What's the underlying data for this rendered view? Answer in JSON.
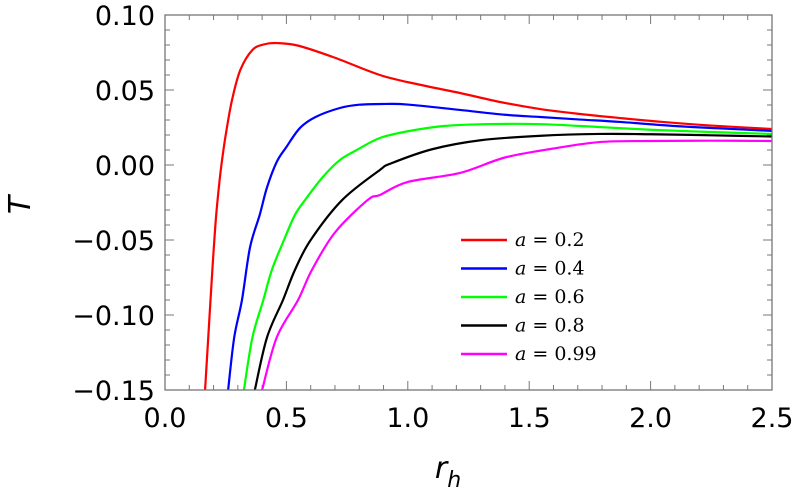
{
  "chart_data": {
    "type": "line",
    "title": "",
    "xlabel": "r_h",
    "ylabel": "T",
    "xlim": [
      0.0,
      2.5
    ],
    "ylim": [
      -0.15,
      0.1
    ],
    "grid": false,
    "legend_position": "inside-lower-right",
    "x_ticks": [
      "0.0",
      "0.5",
      "1.0",
      "1.5",
      "2.0",
      "2.5"
    ],
    "y_ticks": [
      "0.10",
      "0.05",
      "0.00",
      "−0.05",
      "−0.10",
      "−0.15"
    ],
    "x_tick_values": [
      0.0,
      0.5,
      1.0,
      1.5,
      2.0,
      2.5
    ],
    "y_tick_values": [
      0.1,
      0.05,
      0.0,
      -0.05,
      -0.1,
      -0.15
    ],
    "series": [
      {
        "name": "a = 0.2",
        "param": "a",
        "value": "0.2",
        "color": "#ff0000",
        "points": [
          [
            0.165,
            -0.15
          ],
          [
            0.18,
            -0.11
          ],
          [
            0.195,
            -0.07
          ],
          [
            0.21,
            -0.035
          ],
          [
            0.225,
            -0.01
          ],
          [
            0.235,
            0.0033
          ],
          [
            0.25,
            0.02
          ],
          [
            0.276,
            0.0433
          ],
          [
            0.31,
            0.0633
          ],
          [
            0.36,
            0.0767
          ],
          [
            0.41,
            0.0805
          ],
          [
            0.46,
            0.0813
          ],
          [
            0.55,
            0.0795
          ],
          [
            0.7,
            0.0715
          ],
          [
            0.885,
            0.06
          ],
          [
            1.05,
            0.0535
          ],
          [
            1.215,
            0.048
          ],
          [
            1.38,
            0.042
          ],
          [
            1.545,
            0.0373
          ],
          [
            1.71,
            0.034
          ],
          [
            1.875,
            0.0313
          ],
          [
            2.05,
            0.0287
          ],
          [
            2.25,
            0.0263
          ],
          [
            2.5,
            0.024
          ]
        ]
      },
      {
        "name": "a = 0.4",
        "param": "a",
        "value": "0.4",
        "color": "#0000ff",
        "points": [
          [
            0.26,
            -0.15
          ],
          [
            0.285,
            -0.115
          ],
          [
            0.317,
            -0.09
          ],
          [
            0.35,
            -0.055
          ],
          [
            0.39,
            -0.0333
          ],
          [
            0.42,
            -0.015
          ],
          [
            0.46,
            0.002
          ],
          [
            0.5,
            0.012
          ],
          [
            0.556,
            0.0247
          ],
          [
            0.62,
            0.032
          ],
          [
            0.72,
            0.038
          ],
          [
            0.8,
            0.0402
          ],
          [
            0.91,
            0.0407
          ],
          [
            1.0,
            0.0403
          ],
          [
            1.215,
            0.0367
          ],
          [
            1.4,
            0.0335
          ],
          [
            1.545,
            0.032
          ],
          [
            1.71,
            0.0303
          ],
          [
            1.875,
            0.0287
          ],
          [
            2.1,
            0.026
          ],
          [
            2.3,
            0.0243
          ],
          [
            2.5,
            0.0227
          ]
        ]
      },
      {
        "name": "a = 0.6",
        "param": "a",
        "value": "0.6",
        "color": "#00ff00",
        "points": [
          [
            0.325,
            -0.15
          ],
          [
            0.36,
            -0.115
          ],
          [
            0.405,
            -0.09
          ],
          [
            0.44,
            -0.07
          ],
          [
            0.49,
            -0.05
          ],
          [
            0.535,
            -0.0333
          ],
          [
            0.577,
            -0.0233
          ],
          [
            0.65,
            -0.008
          ],
          [
            0.72,
            0.0033
          ],
          [
            0.79,
            0.01
          ],
          [
            0.885,
            0.018
          ],
          [
            1.0,
            0.0225
          ],
          [
            1.15,
            0.026
          ],
          [
            1.34,
            0.0273
          ],
          [
            1.55,
            0.0272
          ],
          [
            1.79,
            0.0253
          ],
          [
            2.0,
            0.0235
          ],
          [
            2.25,
            0.022
          ],
          [
            2.5,
            0.0207
          ]
        ]
      },
      {
        "name": "a = 0.8",
        "param": "a",
        "value": "0.8",
        "color": "#000000",
        "points": [
          [
            0.37,
            -0.15
          ],
          [
            0.42,
            -0.115
          ],
          [
            0.486,
            -0.09
          ],
          [
            0.535,
            -0.07
          ],
          [
            0.6,
            -0.05
          ],
          [
            0.73,
            -0.0233
          ],
          [
            0.885,
            -0.0033
          ],
          [
            0.93,
            0.001
          ],
          [
            1.1,
            0.0105
          ],
          [
            1.3,
            0.0165
          ],
          [
            1.55,
            0.0195
          ],
          [
            1.79,
            0.0207
          ],
          [
            2.0,
            0.0205
          ],
          [
            2.25,
            0.0198
          ],
          [
            2.5,
            0.019
          ]
        ]
      },
      {
        "name": "a = 0.99",
        "param": "a",
        "value": "0.99",
        "color": "#ff00ff",
        "points": [
          [
            0.4,
            -0.15
          ],
          [
            0.46,
            -0.115
          ],
          [
            0.548,
            -0.09
          ],
          [
            0.605,
            -0.07
          ],
          [
            0.7,
            -0.045
          ],
          [
            0.835,
            -0.0233
          ],
          [
            0.885,
            -0.02
          ],
          [
            1.0,
            -0.0113
          ],
          [
            1.215,
            -0.0053
          ],
          [
            1.4,
            0.005
          ],
          [
            1.6,
            0.011
          ],
          [
            1.79,
            0.0153
          ],
          [
            2.0,
            0.016
          ],
          [
            2.25,
            0.0162
          ],
          [
            2.5,
            0.016
          ]
        ]
      }
    ]
  },
  "axes": {
    "xlabel_main": "r",
    "xlabel_sub": "h",
    "ylabel": "T"
  },
  "legend": {
    "items": [
      {
        "label_var": "a",
        "label_eq": " = 0.2",
        "color": "#ff0000"
      },
      {
        "label_var": "a",
        "label_eq": " = 0.4",
        "color": "#0000ff"
      },
      {
        "label_var": "a",
        "label_eq": " = 0.6",
        "color": "#00ff00"
      },
      {
        "label_var": "a",
        "label_eq": " = 0.8",
        "color": "#000000"
      },
      {
        "label_var": "a",
        "label_eq": " = 0.99",
        "color": "#ff00ff"
      }
    ]
  }
}
